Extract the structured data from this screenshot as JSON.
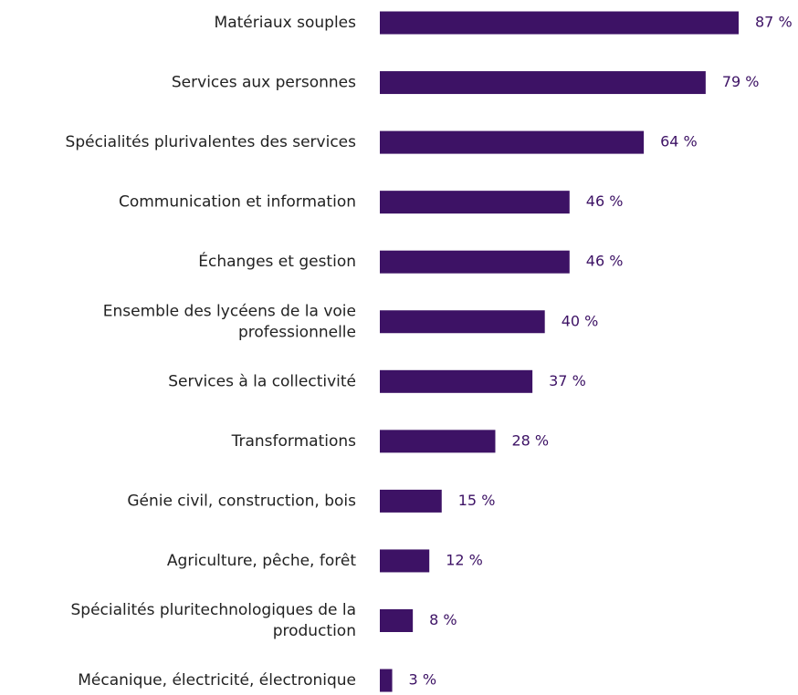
{
  "chart_data": {
    "type": "bar",
    "orientation": "horizontal",
    "categories": [
      "Matériaux souples",
      "Services aux personnes",
      "Spécialités plurivalentes des services",
      "Communication et information",
      "Échanges et gestion",
      "Ensemble des lycéens de la voie professionnelle",
      "Services à la collectivité",
      "Transformations",
      "Génie civil, construction, bois",
      "Agriculture, pêche, forêt",
      "Spécialités pluritechnologiques de la production",
      "Mécanique, électricité, électronique"
    ],
    "values": [
      87,
      79,
      64,
      46,
      46,
      40,
      37,
      28,
      15,
      12,
      8,
      3
    ],
    "value_labels": [
      "87 %",
      "79 %",
      "64 %",
      "46 %",
      "46 %",
      "40 %",
      "37 %",
      "28 %",
      "15 %",
      "12 %",
      "8 %",
      "3 %"
    ],
    "label_lines": [
      [
        "Matériaux souples"
      ],
      [
        "Services aux personnes"
      ],
      [
        "Spécialités plurivalentes des services"
      ],
      [
        "Communication et information"
      ],
      [
        "Échanges et gestion"
      ],
      [
        "Ensemble des lycéens de la voie",
        "professionnelle"
      ],
      [
        "Services à la collectivité"
      ],
      [
        "Transformations"
      ],
      [
        "Génie civil, construction, bois"
      ],
      [
        "Agriculture, pêche, forêt"
      ],
      [
        "Spécialités pluritechnologiques de la",
        "production"
      ],
      [
        "Mécanique, électricité, électronique"
      ]
    ],
    "title": "",
    "xlabel": "",
    "ylabel": "",
    "xlim": [
      0,
      100
    ],
    "grid": false,
    "legend": "none",
    "bar_color": "#3d1265",
    "value_label_color": "#3d1265",
    "category_label_color": "#222222"
  }
}
